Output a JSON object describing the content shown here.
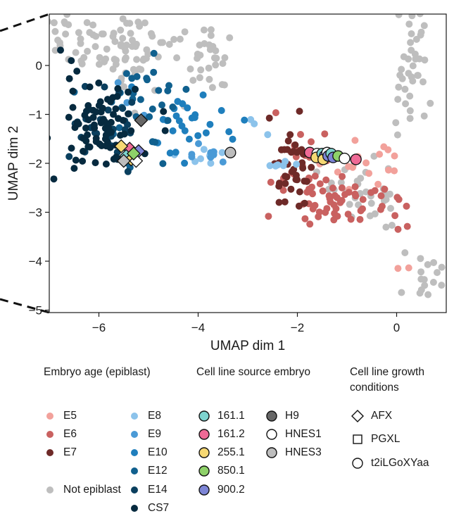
{
  "chart_data": {
    "type": "scatter",
    "xlabel": "UMAP dim 1",
    "ylabel": "UMAP dim 2",
    "xlim": [
      -7,
      1
    ],
    "ylim": [
      -5.05,
      1.05
    ],
    "xticks": [
      -6,
      -4,
      -2,
      0
    ],
    "yticks": [
      0,
      -1,
      -2,
      -3,
      -4,
      -5
    ],
    "xtick_labels": [
      "−6",
      "−4",
      "−2",
      "0"
    ],
    "ytick_labels": [
      "0",
      "−1",
      "−2",
      "−3",
      "−4",
      "−5"
    ],
    "grid": false,
    "series": [
      {
        "name": "Not epiblast",
        "color": "#bebebe",
        "clusters": [
          {
            "cx": -6.2,
            "cy": 0.55,
            "sx": 0.55,
            "sy": 0.3,
            "n": 45
          },
          {
            "cx": -5.1,
            "cy": 0.3,
            "sx": 0.55,
            "sy": 0.45,
            "n": 55
          },
          {
            "cx": -3.9,
            "cy": 0.15,
            "sx": 0.35,
            "sy": 0.3,
            "n": 25
          },
          {
            "cx": 0.35,
            "cy": -0.1,
            "sx": 0.25,
            "sy": 0.7,
            "n": 40
          },
          {
            "cx": -0.6,
            "cy": -2.6,
            "sx": 0.45,
            "sy": 0.35,
            "n": 35
          },
          {
            "cx": 0.55,
            "cy": -4.4,
            "sx": 0.25,
            "sy": 0.35,
            "n": 18
          }
        ]
      },
      {
        "name": "E5",
        "color": "#f2a19b",
        "clusters": [
          {
            "cx": -0.6,
            "cy": -2.1,
            "sx": 0.4,
            "sy": 0.25,
            "n": 16
          },
          {
            "cx": 0.2,
            "cy": -4.1,
            "sx": 0.1,
            "sy": 0.1,
            "n": 2
          }
        ]
      },
      {
        "name": "E6",
        "color": "#c96160",
        "clusters": [
          {
            "cx": -1.2,
            "cy": -2.75,
            "sx": 0.55,
            "sy": 0.3,
            "n": 55
          },
          {
            "cx": -1.8,
            "cy": -2.0,
            "sx": 0.3,
            "sy": 0.5,
            "n": 18
          },
          {
            "cx": 0.05,
            "cy": -3.2,
            "sx": 0.2,
            "sy": 0.2,
            "n": 5
          }
        ]
      },
      {
        "name": "E7",
        "color": "#6e2a28",
        "clusters": [
          {
            "cx": -2.15,
            "cy": -2.05,
            "sx": 0.18,
            "sy": 0.45,
            "n": 38
          }
        ]
      },
      {
        "name": "E8",
        "color": "#8cc3eb",
        "clusters": [
          {
            "cx": -3.9,
            "cy": -1.8,
            "sx": 0.35,
            "sy": 0.15,
            "n": 8
          },
          {
            "cx": -2.3,
            "cy": -2.1,
            "sx": 0.15,
            "sy": 0.15,
            "n": 6
          },
          {
            "cx": -2.9,
            "cy": -1.2,
            "sx": 0.15,
            "sy": 0.15,
            "n": 3
          }
        ]
      },
      {
        "name": "E9",
        "color": "#4a9ad6",
        "clusters": [
          {
            "cx": -4.0,
            "cy": -1.8,
            "sx": 0.3,
            "sy": 0.15,
            "n": 8
          },
          {
            "cx": -5.6,
            "cy": -0.4,
            "sx": 0.3,
            "sy": 0.3,
            "n": 3
          }
        ]
      },
      {
        "name": "E10",
        "color": "#1f7fbd",
        "clusters": [
          {
            "cx": -4.5,
            "cy": -1.3,
            "sx": 0.4,
            "sy": 0.35,
            "n": 22
          },
          {
            "cx": -3.5,
            "cy": -1.2,
            "sx": 0.4,
            "sy": 0.2,
            "n": 6
          }
        ]
      },
      {
        "name": "E12",
        "color": "#10608e",
        "clusters": [
          {
            "cx": -5.0,
            "cy": -1.0,
            "sx": 0.45,
            "sy": 0.5,
            "n": 35
          }
        ]
      },
      {
        "name": "E14",
        "color": "#0a3f5e",
        "clusters": [
          {
            "cx": -5.8,
            "cy": -1.2,
            "sx": 0.4,
            "sy": 0.45,
            "n": 30
          }
        ]
      },
      {
        "name": "CS7",
        "color": "#062a3f",
        "clusters": [
          {
            "cx": -6.0,
            "cy": -1.3,
            "sx": 0.4,
            "sy": 0.5,
            "n": 75
          },
          {
            "cx": -6.5,
            "cy": -0.1,
            "sx": 0.2,
            "sy": 0.2,
            "n": 5
          }
        ]
      }
    ],
    "cell_line_points": [
      {
        "source": "161.2",
        "condition": "AFX",
        "x": -5.38,
        "y": -1.7
      },
      {
        "source": "255.1",
        "condition": "AFX",
        "x": -5.55,
        "y": -1.65
      },
      {
        "source": "900.2",
        "condition": "AFX",
        "x": -5.2,
        "y": -1.75
      },
      {
        "source": "161.1",
        "condition": "AFX",
        "x": -5.45,
        "y": -1.85
      },
      {
        "source": "255.1",
        "condition": "AFX",
        "x": -5.35,
        "y": -1.92
      },
      {
        "source": "HNES1",
        "condition": "AFX",
        "x": -5.25,
        "y": -1.95
      },
      {
        "source": "HNES3",
        "condition": "AFX",
        "x": -5.5,
        "y": -1.95
      },
      {
        "source": "H9",
        "condition": "AFX",
        "x": -5.15,
        "y": -1.12
      },
      {
        "source": "850.1",
        "condition": "AFX",
        "x": -5.3,
        "y": -1.8
      },
      {
        "source": "HNES3",
        "condition": "t2iLGoXYaa",
        "x": -3.35,
        "y": -1.78
      },
      {
        "source": "161.2",
        "condition": "t2iLGoXYaa",
        "x": -1.75,
        "y": -1.78
      },
      {
        "source": "HNES1",
        "condition": "t2iLGoXYaa",
        "x": -1.6,
        "y": -1.8
      },
      {
        "source": "255.1",
        "condition": "t2iLGoXYaa",
        "x": -1.62,
        "y": -1.88
      },
      {
        "source": "161.1",
        "condition": "t2iLGoXYaa",
        "x": -1.5,
        "y": -1.8
      },
      {
        "source": "900.2",
        "condition": "t2iLGoXYaa",
        "x": -1.45,
        "y": -1.85
      },
      {
        "source": "255.1",
        "condition": "t2iLGoXYaa",
        "x": -1.48,
        "y": -1.92
      },
      {
        "source": "HNES1",
        "condition": "t2iLGoXYaa",
        "x": -1.4,
        "y": -1.78
      },
      {
        "source": "900.2",
        "condition": "t2iLGoXYaa",
        "x": -1.38,
        "y": -1.85
      },
      {
        "source": "161.1",
        "condition": "t2iLGoXYaa",
        "x": -1.32,
        "y": -1.8
      },
      {
        "source": "900.2",
        "condition": "t2iLGoXYaa",
        "x": -1.28,
        "y": -1.88
      },
      {
        "source": "850.1",
        "condition": "t2iLGoXYaa",
        "x": -1.18,
        "y": -1.85
      },
      {
        "source": "HNES1",
        "condition": "t2iLGoXYaa",
        "x": -1.05,
        "y": -1.9
      },
      {
        "source": "161.2",
        "condition": "t2iLGoXYaa",
        "x": -0.82,
        "y": -1.92
      }
    ]
  },
  "legend": {
    "embryo_age": {
      "title": "Embryo age (epiblast)",
      "items": [
        {
          "label": "E5",
          "color": "#f2a19b"
        },
        {
          "label": "E6",
          "color": "#c96160"
        },
        {
          "label": "E7",
          "color": "#6e2a28"
        },
        {
          "label": "Not epiblast",
          "color": "#bebebe"
        },
        {
          "label": "E8",
          "color": "#8cc3eb"
        },
        {
          "label": "E9",
          "color": "#4a9ad6"
        },
        {
          "label": "E10",
          "color": "#1f7fbd"
        },
        {
          "label": "E12",
          "color": "#10608e"
        },
        {
          "label": "E14",
          "color": "#0a3f5e"
        },
        {
          "label": "CS7",
          "color": "#062a3f"
        }
      ]
    },
    "source_embryo": {
      "title": "Cell line source embryo",
      "items": [
        {
          "label": "161.1",
          "color": "#7ed3cf"
        },
        {
          "label": "161.2",
          "color": "#ef6a96"
        },
        {
          "label": "255.1",
          "color": "#f6d873"
        },
        {
          "label": "850.1",
          "color": "#8ed169"
        },
        {
          "label": "900.2",
          "color": "#7d85d6"
        },
        {
          "label": "H9",
          "color": "#676767"
        },
        {
          "label": "HNES1",
          "color": "#ffffff"
        },
        {
          "label": "HNES3",
          "color": "#bdbdbd"
        }
      ]
    },
    "growth_conditions": {
      "title_line1": "Cell line growth",
      "title_line2": "conditions",
      "items": [
        {
          "label": "AFX",
          "shape": "diamond"
        },
        {
          "label": "PGXL",
          "shape": "square"
        },
        {
          "label": "t2iLGoXYaa",
          "shape": "circle"
        }
      ]
    }
  }
}
